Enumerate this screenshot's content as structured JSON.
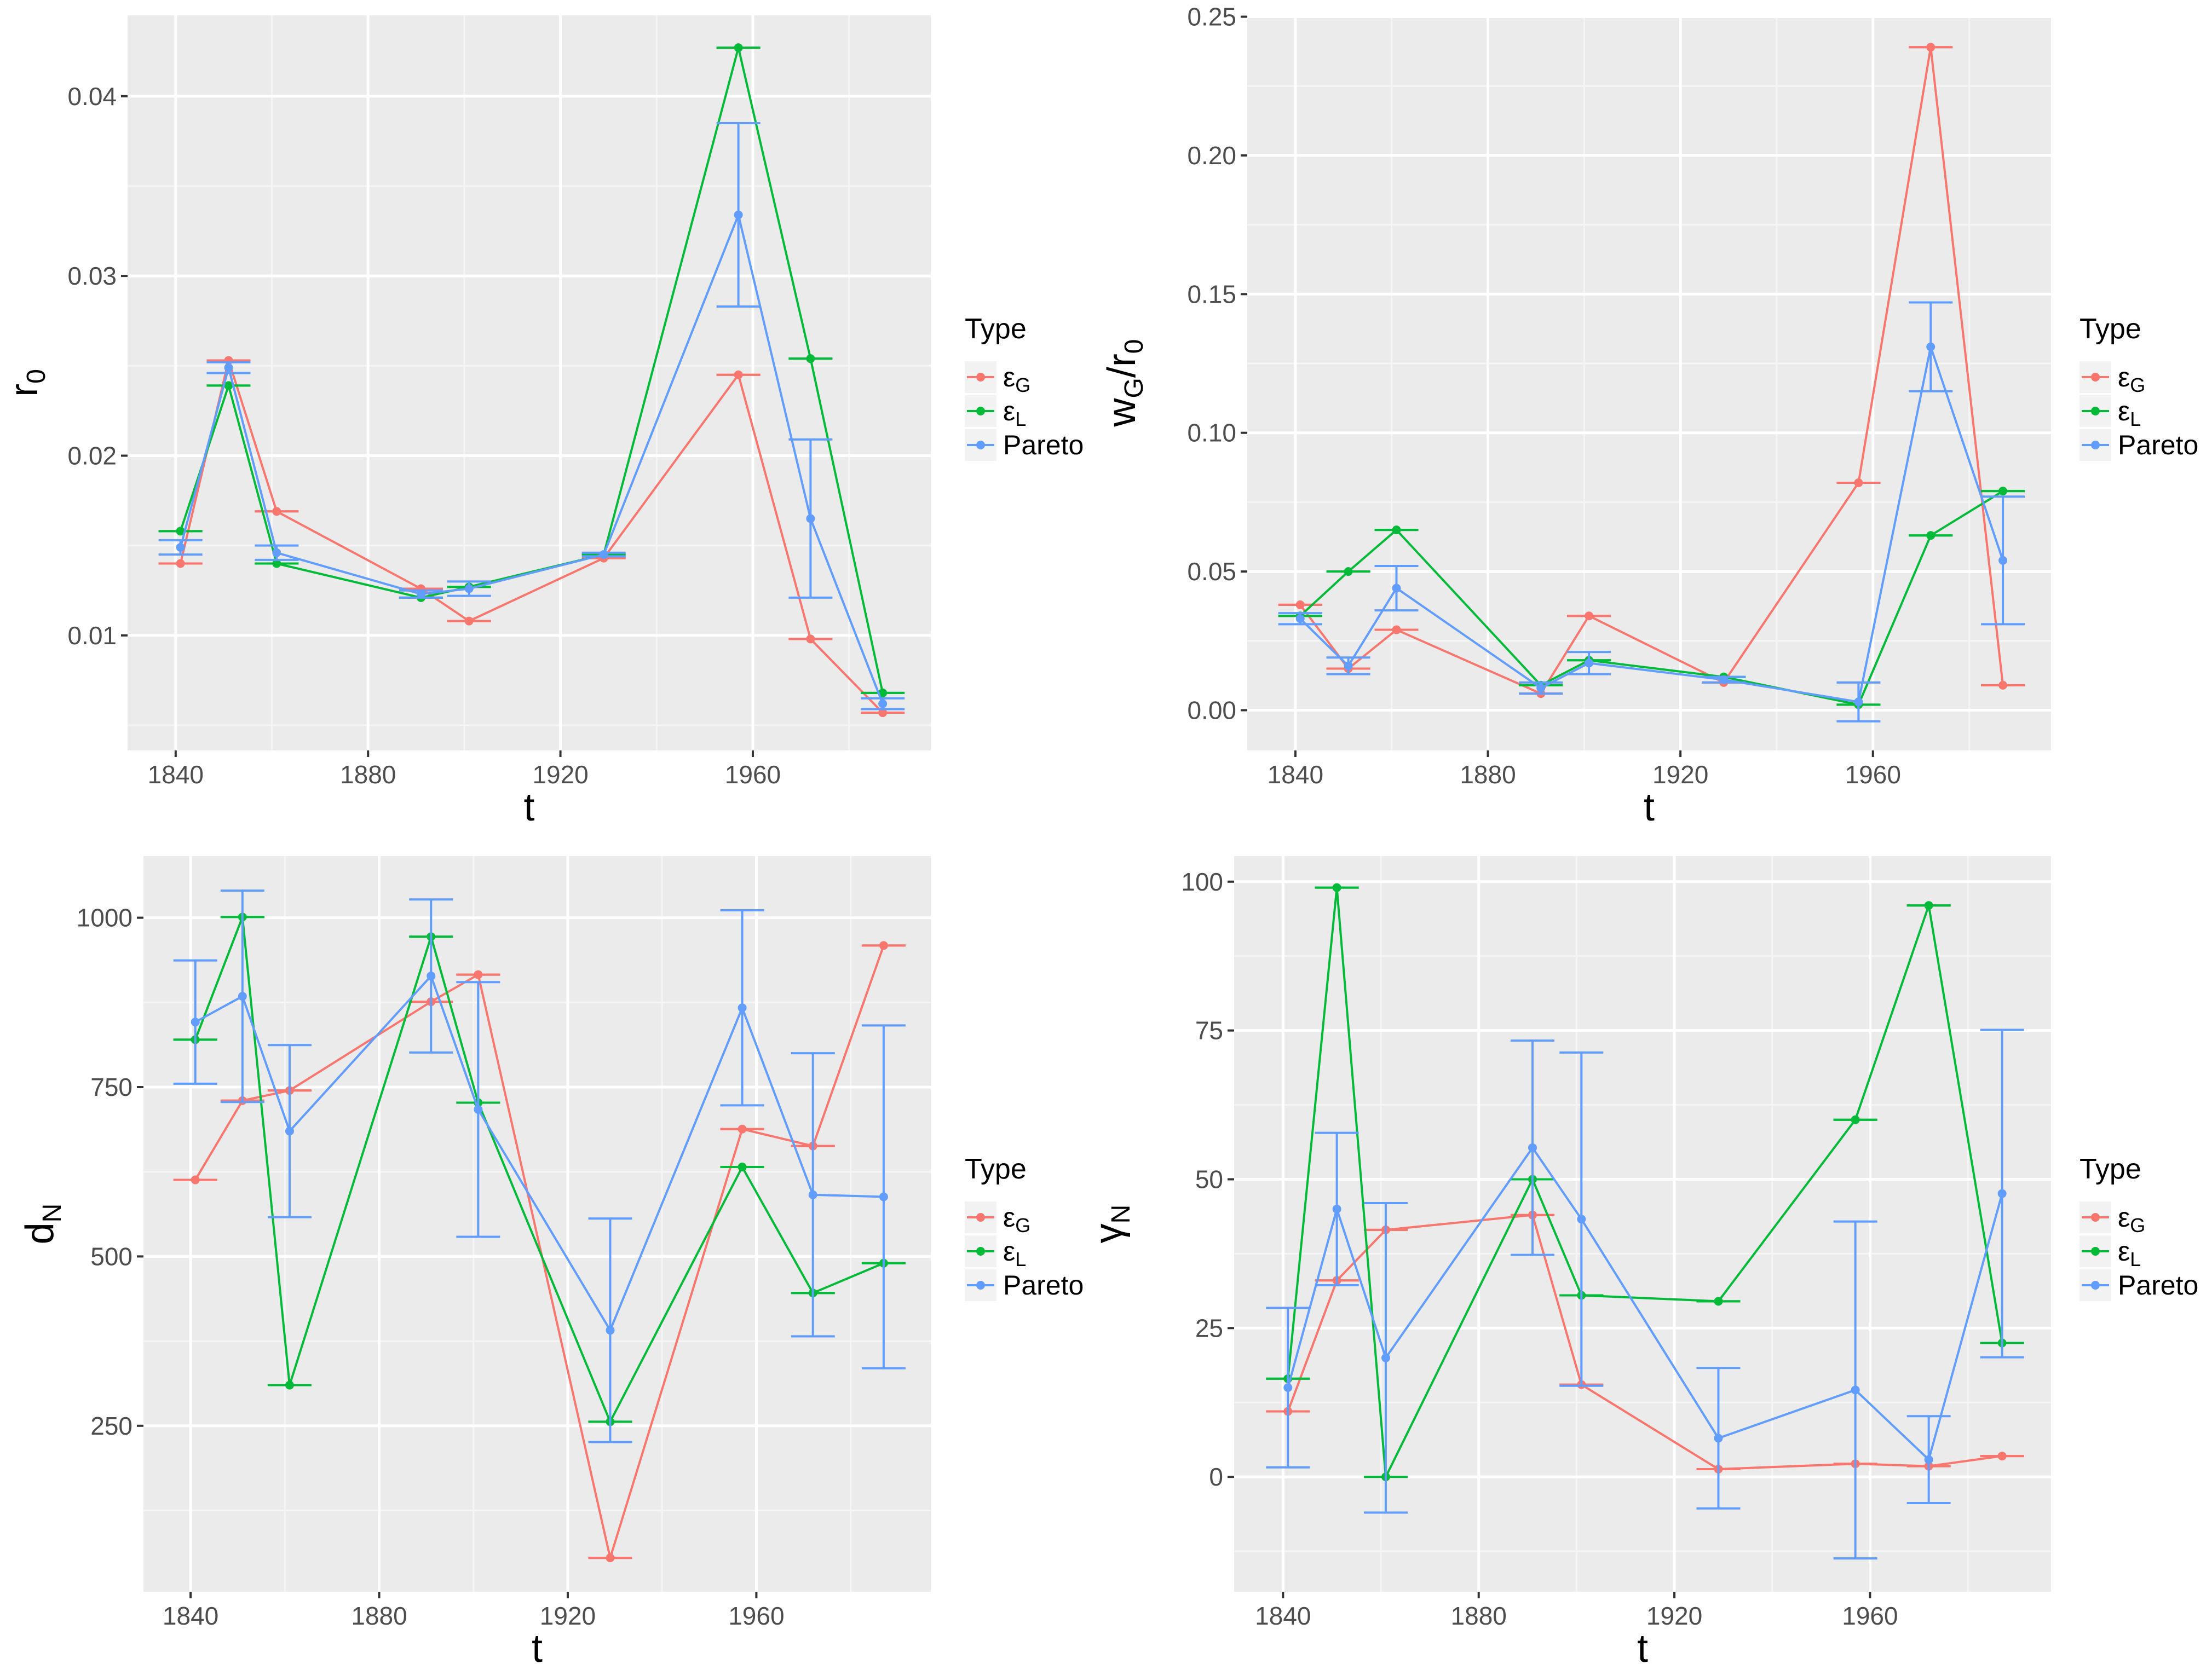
{
  "chart_data": [
    {
      "type": "line",
      "panel": "top-left",
      "title": "",
      "xlabel": "t",
      "ylabel": {
        "main": "r",
        "sub": "0"
      },
      "xlim": [
        1830,
        1997
      ],
      "ylim": [
        0.0036,
        0.0445
      ],
      "xticks": [
        1840,
        1880,
        1920,
        1960
      ],
      "xtick_labels": [
        "1840",
        "1880",
        "1920",
        "1960"
      ],
      "yticks": [
        0.01,
        0.02,
        0.03,
        0.04
      ],
      "ytick_labels": [
        "0.01",
        "0.02",
        "0.03",
        "0.04"
      ],
      "grid": true,
      "legend": {
        "title": "Type",
        "position": "right"
      },
      "series": [
        {
          "name": "ε_G",
          "label_main": "ε",
          "label_sub": "G",
          "color": "#F8766D",
          "x": [
            1841,
            1851,
            1861,
            1891,
            1901,
            1929,
            1957,
            1972,
            1987
          ],
          "y": [
            0.014,
            0.0253,
            0.0169,
            0.0126,
            0.0108,
            0.0143,
            0.0245,
            0.0098,
            0.0057
          ],
          "err": [
            0,
            0,
            0,
            0,
            0,
            0,
            0,
            0,
            0
          ]
        },
        {
          "name": "ε_L",
          "label_main": "ε",
          "label_sub": "L",
          "color": "#00BA38",
          "x": [
            1841,
            1851,
            1861,
            1891,
            1901,
            1929,
            1957,
            1972,
            1987
          ],
          "y": [
            0.0158,
            0.0239,
            0.014,
            0.0121,
            0.0127,
            0.0145,
            0.0427,
            0.0254,
            0.0068
          ],
          "err": [
            0,
            0,
            0,
            0,
            0,
            0,
            0,
            0,
            0
          ]
        },
        {
          "name": "Pareto",
          "label_main": "Pareto",
          "label_sub": "",
          "color": "#619CFF",
          "x": [
            1841,
            1851,
            1861,
            1891,
            1901,
            1929,
            1957,
            1972,
            1987
          ],
          "y": [
            0.0149,
            0.0249,
            0.0146,
            0.0123,
            0.0126,
            0.0145,
            0.0334,
            0.0165,
            0.0062
          ],
          "err": [
            0.0004,
            0.0003,
            0.0004,
            0.0002,
            0.0004,
            0.0001,
            0.0051,
            0.0044,
            0.0003
          ]
        }
      ]
    },
    {
      "type": "line",
      "panel": "top-right",
      "title": "",
      "xlabel": "t",
      "ylabel": {
        "main": "w",
        "sub": "G",
        "tail": "/r",
        "sub2": "0"
      },
      "xlim": [
        1830,
        1997
      ],
      "ylim": [
        -0.0145,
        0.2505
      ],
      "xticks": [
        1840,
        1880,
        1920,
        1960
      ],
      "xtick_labels": [
        "1840",
        "1880",
        "1920",
        "1960"
      ],
      "yticks": [
        0.0,
        0.05,
        0.1,
        0.15,
        0.2,
        0.25
      ],
      "ytick_labels": [
        "0.00",
        "0.05",
        "0.10",
        "0.15",
        "0.20",
        "0.25"
      ],
      "grid": true,
      "legend": {
        "title": "Type",
        "position": "right"
      },
      "series": [
        {
          "name": "ε_G",
          "label_main": "ε",
          "label_sub": "G",
          "color": "#F8766D",
          "x": [
            1841,
            1851,
            1861,
            1891,
            1901,
            1929,
            1957,
            1972,
            1987
          ],
          "y": [
            0.038,
            0.015,
            0.029,
            0.006,
            0.034,
            0.01,
            0.082,
            0.239,
            0.009
          ],
          "err": [
            0,
            0,
            0,
            0,
            0,
            0,
            0,
            0,
            0
          ]
        },
        {
          "name": "ε_L",
          "label_main": "ε",
          "label_sub": "L",
          "color": "#00BA38",
          "x": [
            1841,
            1851,
            1861,
            1891,
            1901,
            1929,
            1957,
            1972,
            1987
          ],
          "y": [
            0.034,
            0.05,
            0.065,
            0.009,
            0.018,
            0.012,
            0.002,
            0.063,
            0.079
          ],
          "err": [
            0,
            0,
            0,
            0,
            0,
            0,
            0,
            0,
            0
          ]
        },
        {
          "name": "Pareto",
          "label_main": "Pareto",
          "label_sub": "",
          "color": "#619CFF",
          "x": [
            1841,
            1851,
            1861,
            1891,
            1901,
            1929,
            1957,
            1972,
            1987
          ],
          "y": [
            0.033,
            0.016,
            0.044,
            0.008,
            0.017,
            0.011,
            0.003,
            0.131,
            0.054
          ],
          "err": [
            0.002,
            0.003,
            0.008,
            0.002,
            0.004,
            0.001,
            0.007,
            0.016,
            0.023
          ]
        }
      ]
    },
    {
      "type": "line",
      "panel": "bottom-left",
      "title": "",
      "xlabel": "t",
      "ylabel": {
        "main": "d",
        "sub": "N"
      },
      "xlim": [
        1830,
        1997
      ],
      "ylim": [
        5,
        1091
      ],
      "xticks": [
        1840,
        1880,
        1920,
        1960
      ],
      "xtick_labels": [
        "1840",
        "1880",
        "1920",
        "1960"
      ],
      "yticks": [
        250,
        500,
        750,
        1000
      ],
      "ytick_labels": [
        "250",
        "500",
        "750",
        "1000"
      ],
      "grid": true,
      "legend": {
        "title": "Type",
        "position": "right"
      },
      "series": [
        {
          "name": "ε_G",
          "label_main": "ε",
          "label_sub": "G",
          "color": "#F8766D",
          "x": [
            1841,
            1851,
            1861,
            1891,
            1901,
            1929,
            1957,
            1972,
            1987
          ],
          "y": [
            613,
            730,
            745,
            876,
            916,
            55,
            688,
            663,
            959
          ],
          "err": [
            0,
            0,
            0,
            0,
            0,
            0,
            0,
            0,
            0
          ]
        },
        {
          "name": "ε_L",
          "label_main": "ε",
          "label_sub": "L",
          "color": "#00BA38",
          "x": [
            1841,
            1851,
            1861,
            1891,
            1901,
            1929,
            1957,
            1972,
            1987
          ],
          "y": [
            820,
            1001,
            310,
            972,
            727,
            256,
            632,
            446,
            490
          ],
          "err": [
            0,
            0,
            0,
            0,
            0,
            0,
            0,
            0,
            0
          ]
        },
        {
          "name": "Pareto",
          "label_main": "Pareto",
          "label_sub": "",
          "color": "#619CFF",
          "x": [
            1841,
            1851,
            1861,
            1891,
            1901,
            1929,
            1957,
            1972,
            1987
          ],
          "y": [
            846,
            884,
            685,
            914,
            717,
            391,
            867,
            591,
            588
          ],
          "err": [
            91,
            156,
            127,
            113,
            188,
            165,
            144,
            209,
            253
          ]
        }
      ]
    },
    {
      "type": "line",
      "panel": "bottom-right",
      "title": "",
      "xlabel": "t",
      "ylabel": {
        "main": "γ",
        "sub": "N"
      },
      "xlim": [
        1830,
        1997
      ],
      "ylim": [
        -19.3,
        104.3
      ],
      "xticks": [
        1840,
        1880,
        1920,
        1960
      ],
      "xtick_labels": [
        "1840",
        "1880",
        "1920",
        "1960"
      ],
      "yticks": [
        0,
        25,
        50,
        75,
        100
      ],
      "ytick_labels": [
        "0",
        "25",
        "50",
        "75",
        "100"
      ],
      "grid": true,
      "legend": {
        "title": "Type",
        "position": "right"
      },
      "series": [
        {
          "name": "ε_G",
          "label_main": "ε",
          "label_sub": "G",
          "color": "#F8766D",
          "x": [
            1841,
            1851,
            1861,
            1891,
            1901,
            1929,
            1957,
            1972,
            1987
          ],
          "y": [
            11,
            33,
            41.5,
            44,
            15.5,
            1.3,
            2.2,
            1.8,
            3.5
          ],
          "err": [
            0,
            0,
            0,
            0,
            0,
            0,
            0,
            0,
            0
          ]
        },
        {
          "name": "ε_L",
          "label_main": "ε",
          "label_sub": "L",
          "color": "#00BA38",
          "x": [
            1841,
            1851,
            1861,
            1891,
            1901,
            1929,
            1957,
            1972,
            1987
          ],
          "y": [
            16.5,
            99,
            0,
            50,
            30.5,
            29.5,
            60,
            96,
            22.5
          ],
          "err": [
            0,
            0,
            0,
            0,
            0,
            0,
            0,
            0,
            0
          ]
        },
        {
          "name": "Pareto",
          "label_main": "Pareto",
          "label_sub": "",
          "color": "#619CFF",
          "x": [
            1841,
            1851,
            1861,
            1891,
            1901,
            1929,
            1957,
            1972,
            1987
          ],
          "y": [
            15,
            45,
            20,
            55.3,
            43.3,
            6.5,
            14.6,
            2.9,
            47.6
          ],
          "err": [
            13.4,
            12.8,
            26,
            18,
            28,
            11.8,
            28.3,
            7.3,
            27.5
          ]
        }
      ]
    }
  ]
}
